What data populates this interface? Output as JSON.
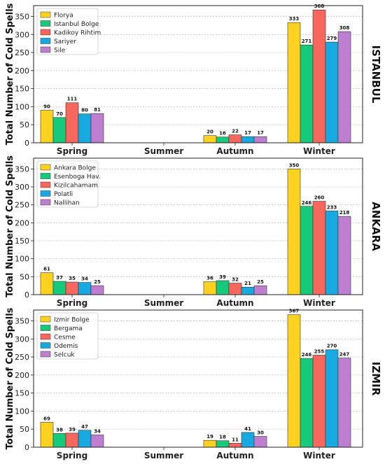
{
  "ylabel": "Total Number of Cold Spells",
  "colors": [
    "#FFD21F",
    "#17C97A",
    "#F8675E",
    "#17A9E0",
    "#BF7FD1"
  ],
  "chart_data": [
    {
      "type": "bar",
      "title": "ISTANBUL",
      "categories": [
        "Spring",
        "Summer",
        "Autumn",
        "Winter"
      ],
      "ylim": [
        0,
        380
      ],
      "yticks": [
        0,
        50,
        100,
        150,
        200,
        250,
        300,
        350
      ],
      "grid": true,
      "legend": "top-left",
      "series": [
        {
          "name": "Florya",
          "values": [
            90,
            0,
            20,
            333
          ]
        },
        {
          "name": "Istanbul Bolge",
          "values": [
            70,
            0,
            16,
            271
          ]
        },
        {
          "name": "Kadikoy Rihtim",
          "values": [
            111,
            0,
            22,
            368
          ]
        },
        {
          "name": "Sariyer",
          "values": [
            80,
            0,
            17,
            279
          ]
        },
        {
          "name": "Sile",
          "values": [
            81,
            0,
            17,
            308
          ]
        }
      ]
    },
    {
      "type": "bar",
      "title": "ANKARA",
      "categories": [
        "Spring",
        "Summer",
        "Autumn",
        "Winter"
      ],
      "ylim": [
        0,
        380
      ],
      "yticks": [
        0,
        50,
        100,
        150,
        200,
        250,
        300,
        350
      ],
      "grid": true,
      "legend": "top-left",
      "series": [
        {
          "name": "Ankara Bolge",
          "values": [
            61,
            0,
            36,
            350
          ]
        },
        {
          "name": "Esenboga Hav.",
          "values": [
            37,
            0,
            39,
            246
          ]
        },
        {
          "name": "Kizilcahamam",
          "values": [
            35,
            0,
            32,
            260
          ]
        },
        {
          "name": "Polatli",
          "values": [
            34,
            0,
            21,
            233
          ]
        },
        {
          "name": "Nallihan",
          "values": [
            25,
            0,
            25,
            218
          ]
        }
      ]
    },
    {
      "type": "bar",
      "title": "IZMIR",
      "categories": [
        "Spring",
        "Summer",
        "Autumn",
        "Winter"
      ],
      "ylim": [
        0,
        380
      ],
      "yticks": [
        0,
        50,
        100,
        150,
        200,
        250,
        300,
        350
      ],
      "grid": true,
      "legend": "top-left",
      "series": [
        {
          "name": "Izmir Bolge",
          "values": [
            69,
            0,
            19,
            367
          ]
        },
        {
          "name": "Bergama",
          "values": [
            38,
            0,
            18,
            246
          ]
        },
        {
          "name": "Cesme",
          "values": [
            39,
            0,
            11,
            255
          ]
        },
        {
          "name": "Odemis",
          "values": [
            47,
            0,
            41,
            270
          ]
        },
        {
          "name": "Selcuk",
          "values": [
            34,
            0,
            30,
            247
          ]
        }
      ]
    }
  ]
}
